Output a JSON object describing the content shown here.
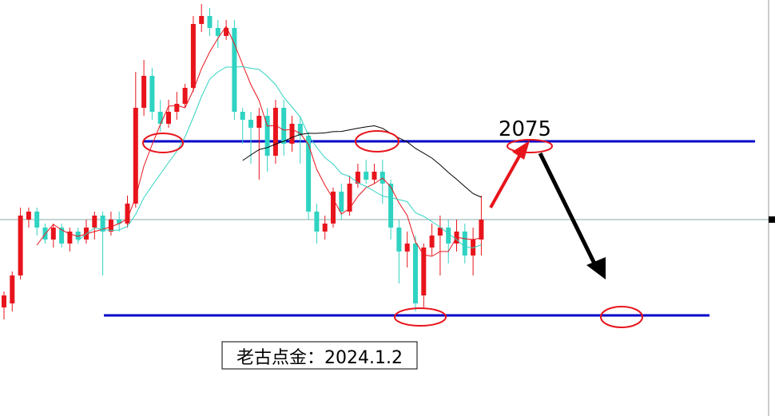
{
  "chart_data": {
    "type": "candlestick",
    "annotation": "2075",
    "caption": "老古点金：2024.1.2",
    "up_color": "#e8141c",
    "down_color": "#2fd3c2",
    "ylim": [
      2040.6,
      2092.7
    ],
    "levels": [
      2075,
      2053.2
    ],
    "level_color": "#0000c8",
    "open": [
      2054.2,
      2054.7,
      2058.2,
      2065.2,
      2066.2,
      2064.2,
      2062.7,
      2064.2,
      2062.2,
      2063.7,
      2062.7,
      2064.2,
      2065.7,
      2063.7,
      2065.2,
      2064.7,
      2067.2,
      2079.2,
      2083.2,
      2078.7,
      2077.2,
      2078.7,
      2079.7,
      2081.7,
      2089.7,
      2090.7,
      2089.2,
      2088.2,
      2089.2,
      2078.7,
      2077.7,
      2076.7,
      2078.2,
      2073.2,
      2079.2,
      2074.7,
      2077.2,
      2075.7,
      2066.2,
      2063.7,
      2064.7,
      2068.7,
      2066.2,
      2069.7,
      2071.2,
      2070.2,
      2071.2,
      2069.7,
      2064.2,
      2061.2,
      2062.2,
      2055.7,
      2061.7,
      2063.2,
      2064.2,
      2062.2,
      2063.7,
      2060.7,
      2062.7
    ],
    "high": [
      2056.2,
      2058.7,
      2066.7,
      2066.7,
      2066.7,
      2064.7,
      2064.7,
      2064.7,
      2064.2,
      2064.2,
      2065.2,
      2066.2,
      2066.2,
      2066.2,
      2066.2,
      2068.2,
      2083.7,
      2085.2,
      2084.2,
      2080.2,
      2080.2,
      2081.2,
      2082.2,
      2090.7,
      2092.2,
      2091.7,
      2090.2,
      2090.2,
      2090.2,
      2079.2,
      2078.7,
      2079.2,
      2079.2,
      2080.2,
      2080.2,
      2078.2,
      2078.2,
      2076.2,
      2067.2,
      2065.7,
      2069.2,
      2069.7,
      2070.7,
      2072.2,
      2072.7,
      2072.2,
      2072.7,
      2070.2,
      2065.2,
      2063.7,
      2063.2,
      2062.2,
      2064.7,
      2065.7,
      2065.2,
      2065.2,
      2064.7,
      2064.2,
      2068.2
    ],
    "low": [
      2052.7,
      2053.7,
      2057.7,
      2064.2,
      2063.2,
      2062.2,
      2061.7,
      2061.7,
      2061.2,
      2062.2,
      2062.2,
      2062.7,
      2058.2,
      2063.2,
      2063.7,
      2064.2,
      2066.7,
      2078.2,
      2077.7,
      2076.2,
      2076.7,
      2077.7,
      2079.2,
      2081.2,
      2088.7,
      2088.2,
      2086.7,
      2087.7,
      2077.7,
      2074.7,
      2072.2,
      2070.2,
      2071.2,
      2072.2,
      2073.2,
      2073.7,
      2072.2,
      2065.2,
      2062.2,
      2062.7,
      2064.2,
      2065.2,
      2065.7,
      2069.2,
      2069.7,
      2069.7,
      2067.2,
      2062.7,
      2057.2,
      2059.2,
      2053.7,
      2054.2,
      2060.7,
      2058.2,
      2059.7,
      2061.2,
      2059.7,
      2058.2,
      2060.7
    ],
    "close": [
      2055.7,
      2058.2,
      2065.7,
      2066.2,
      2064.2,
      2062.7,
      2064.2,
      2062.2,
      2063.7,
      2062.7,
      2064.2,
      2065.7,
      2063.7,
      2065.2,
      2064.7,
      2067.2,
      2079.2,
      2083.2,
      2078.7,
      2077.2,
      2078.7,
      2079.7,
      2081.7,
      2089.7,
      2090.7,
      2089.2,
      2088.2,
      2089.2,
      2078.7,
      2077.7,
      2076.7,
      2078.2,
      2073.2,
      2079.2,
      2074.7,
      2077.2,
      2075.7,
      2066.2,
      2063.7,
      2064.7,
      2068.7,
      2066.2,
      2069.7,
      2071.2,
      2070.2,
      2071.2,
      2069.7,
      2064.2,
      2061.2,
      2062.2,
      2054.7,
      2061.7,
      2063.2,
      2064.2,
      2062.2,
      2063.7,
      2060.7,
      2062.7,
      2065.2
    ]
  }
}
